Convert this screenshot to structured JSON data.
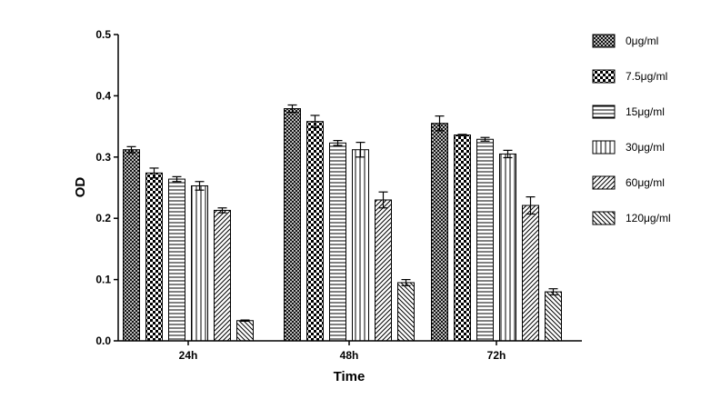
{
  "chart_data": {
    "type": "bar",
    "title": "",
    "xlabel": "Time",
    "ylabel": "OD",
    "categories": [
      "24h",
      "48h",
      "72h"
    ],
    "ylim": [
      0,
      0.5
    ],
    "yticks": [
      "0.0",
      "0.1",
      "0.2",
      "0.3",
      "0.4",
      "0.5"
    ],
    "grid": false,
    "legend_position": "right",
    "series": [
      {
        "name": "0μg/ml",
        "pattern": "crosshatch-dense",
        "values": [
          0.312,
          0.379,
          0.355
        ],
        "errors": [
          0.005,
          0.006,
          0.012
        ]
      },
      {
        "name": "7.5μg/ml",
        "pattern": "checker",
        "values": [
          0.274,
          0.358,
          0.336
        ],
        "errors": [
          0.008,
          0.01,
          0.001
        ]
      },
      {
        "name": "15μg/ml",
        "pattern": "horizontal",
        "values": [
          0.264,
          0.323,
          0.329
        ],
        "errors": [
          0.004,
          0.004,
          0.003
        ]
      },
      {
        "name": "30μg/ml",
        "pattern": "vertical",
        "values": [
          0.253,
          0.312,
          0.305
        ],
        "errors": [
          0.007,
          0.012,
          0.006
        ]
      },
      {
        "name": "60μg/ml",
        "pattern": "diagonal-up",
        "values": [
          0.213,
          0.23,
          0.221
        ],
        "errors": [
          0.004,
          0.013,
          0.014
        ]
      },
      {
        "name": "120μg/ml",
        "pattern": "diagonal-down",
        "values": [
          0.033,
          0.095,
          0.08
        ],
        "errors": [
          0.001,
          0.005,
          0.005
        ]
      }
    ]
  }
}
